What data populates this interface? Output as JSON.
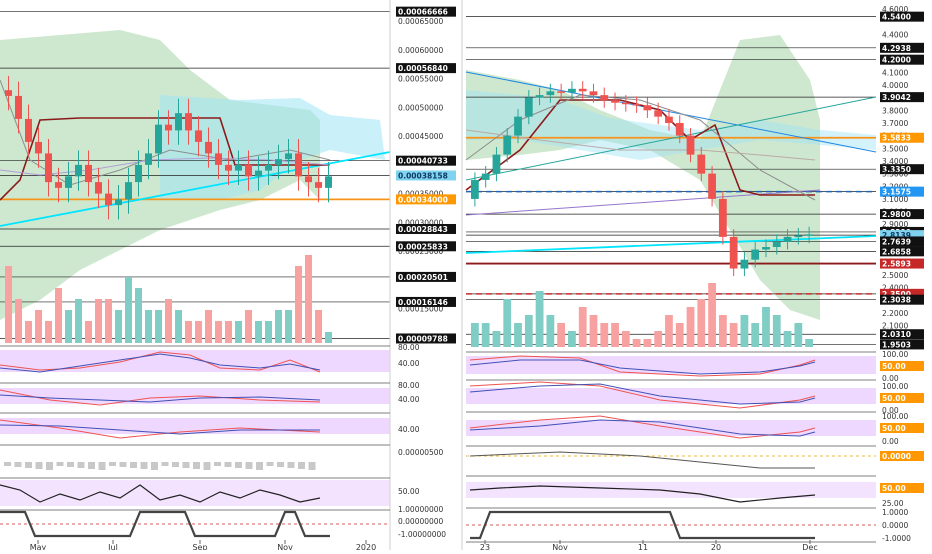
{
  "left_chart": {
    "price_axis_labels": [
      "0.00066666",
      "0.00065000",
      "0.00060000",
      "0.00056840",
      "0.00055000",
      "0.00050000",
      "0.00045000",
      "0.00040733",
      "0.00038158",
      "0.00034000",
      "0.00035000",
      "0.00030000",
      "0.00028843",
      "0.00025833",
      "0.00025000",
      "0.00020501",
      "0.00016146",
      "0.00015000",
      "0.00009788"
    ],
    "time_axis_labels": [
      "May",
      "Jul",
      "Sep",
      "Nov",
      "2020"
    ],
    "osc_labels": [
      "80.00",
      "40.00",
      "80.00",
      "40.00",
      "40.00",
      "0.00000500",
      "50.00",
      "1.00000000",
      "0.00000000",
      "-1.00000000"
    ]
  },
  "right_chart": {
    "price_axis_labels": [
      "4.6000",
      "4.5400",
      "4.4000",
      "4.2938",
      "4.2000",
      "4.1000",
      "4.0000",
      "3.9042",
      "3.8000",
      "3.7000",
      "3.6000",
      "3.5833",
      "3.5000",
      "3.4000",
      "3.3350",
      "3.3000",
      "3.2000",
      "3.1575",
      "3.1000",
      "3.0000",
      "2.9800",
      "2.9000",
      "2.8390",
      "2.8139",
      "2.7639",
      "2.6858",
      "2.6000",
      "2.5893",
      "2.5000",
      "2.4000",
      "2.3500",
      "2.3038",
      "2.2000",
      "2.1000",
      "2.0310",
      "1.9503"
    ],
    "time_axis_labels": [
      "23",
      "Nov",
      "11",
      "20",
      "Dec"
    ],
    "osc_labels": [
      "100.00",
      "50.00",
      "0.00",
      "100.00",
      "50.00",
      "0.00",
      "100.00",
      "50.00",
      "0.00",
      "0.0000",
      "50.00",
      "25.00",
      "1.0000",
      "0.0000",
      "-1.0000"
    ]
  },
  "colors": {
    "bull": "#26a69a",
    "bear": "#ef5350",
    "vol_bull": "#7fcdc4",
    "vol_bear": "#f7a1a1",
    "cloud_green": "#a5d6a7",
    "cloud_blue": "#9fe3f5",
    "cyan_line": "#00e5ff",
    "orange_line": "#f7931a",
    "darkred_line": "#8b1a1a",
    "osc_band": "#e8c8ff",
    "tag_black": "#111111",
    "tag_blue": "#2196f3",
    "tag_orange": "#ff9800",
    "tag_red": "#c62828",
    "tag_sky": "#7fd3ef"
  },
  "chart_data": [
    {
      "type": "candlestick",
      "name": "",
      "x_labels": [
        "May",
        "Jul",
        "Sep",
        "Nov",
        "2020"
      ],
      "ylim": [
        9e-05,
        0.00068
      ],
      "key_levels": [
        0.00066666,
        0.0005684,
        0.00040733,
        0.00038158,
        0.00034,
        0.00028843,
        0.00025833,
        0.00020501,
        0.00016146,
        9.788e-05
      ],
      "closes": [
        0.00052,
        0.00048,
        0.00044,
        0.00042,
        0.00037,
        0.00036,
        0.00038,
        0.0004,
        0.00037,
        0.00035,
        0.00033,
        0.00034,
        0.00037,
        0.0004,
        0.00042,
        0.00047,
        0.00046,
        0.00049,
        0.00046,
        0.00044,
        0.00042,
        0.0004,
        0.00039,
        0.0004,
        0.00038,
        0.00039,
        0.0004,
        0.00041,
        0.00042,
        0.00038,
        0.00037,
        0.00036,
        0.00038
      ],
      "volume": [
        7,
        4,
        2,
        3,
        2,
        5,
        3,
        4,
        2,
        4,
        4,
        3,
        6,
        5,
        3,
        3,
        4,
        3,
        2,
        2,
        3,
        2,
        2,
        2,
        3,
        2,
        2,
        3,
        3,
        7,
        8,
        3,
        1
      ]
    },
    {
      "type": "candlestick",
      "name": "",
      "x_labels": [
        "23",
        "Nov",
        "11",
        "20",
        "Dec"
      ],
      "ylim": [
        1.93,
        4.64
      ],
      "key_levels": [
        4.54,
        4.2938,
        4.2,
        3.9042,
        3.5833,
        3.335,
        3.1575,
        2.98,
        2.839,
        2.8139,
        2.7639,
        2.6858,
        2.5893,
        2.35,
        2.3038,
        2.031,
        1.9503
      ],
      "closes": [
        3.25,
        3.3,
        3.45,
        3.6,
        3.75,
        3.9,
        3.92,
        3.95,
        3.94,
        3.97,
        3.95,
        3.92,
        3.88,
        3.86,
        3.85,
        3.84,
        3.8,
        3.75,
        3.7,
        3.6,
        3.45,
        3.3,
        3.1,
        2.8,
        2.55,
        2.62,
        2.7,
        2.72,
        2.76,
        2.8,
        2.81,
        2.82
      ],
      "volume": [
        3,
        3,
        2,
        6,
        3,
        4,
        7,
        4,
        3,
        2,
        5,
        4,
        3,
        3,
        2,
        1,
        1,
        2,
        4,
        3,
        5,
        6,
        8,
        4,
        3,
        4,
        3,
        5,
        4,
        2,
        3,
        1
      ]
    }
  ]
}
